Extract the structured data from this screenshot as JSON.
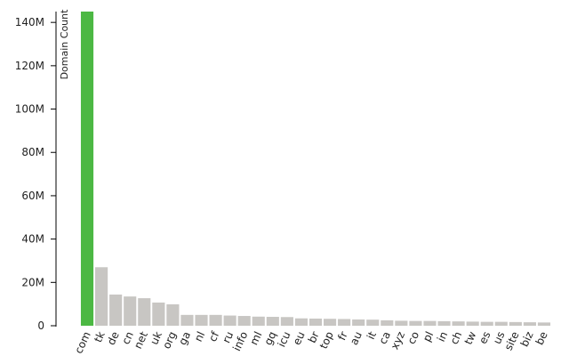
{
  "chart_data": {
    "type": "bar",
    "y_label": "Domain Count",
    "categories": [
      "com",
      "tk",
      "de",
      "cn",
      "net",
      "uk",
      "org",
      "ga",
      "nl",
      "cf",
      "ru",
      "info",
      "ml",
      "gq",
      "icu",
      "eu",
      "br",
      "top",
      "fr",
      "au",
      "it",
      "ca",
      "xyz",
      "co",
      "pl",
      "in",
      "ch",
      "tw",
      "es",
      "us",
      "site",
      "biz",
      "be"
    ],
    "values": [
      145000000,
      27000000,
      14400000,
      13500000,
      12700000,
      10700000,
      9900000,
      5000000,
      5000000,
      5000000,
      4700000,
      4500000,
      4200000,
      4100000,
      4000000,
      3400000,
      3300000,
      3200000,
      3100000,
      2900000,
      2800000,
      2500000,
      2300000,
      2200000,
      2200000,
      2100000,
      2000000,
      1900000,
      1800000,
      1800000,
      1700000,
      1600000,
      1500000
    ],
    "color": "#c8c6c3",
    "highlight_index": 0,
    "highlight_color": "#4cb843",
    "ylim": [
      0,
      145000000
    ],
    "yticks": [
      0,
      {
        "value": 20000000,
        "label": "20M"
      },
      {
        "value": 40000000,
        "label": "40M"
      },
      {
        "value": 60000000,
        "label": "60M"
      },
      {
        "value": 80000000,
        "label": "80M"
      },
      {
        "value": 100000000,
        "label": "100M"
      },
      {
        "value": 120000000,
        "label": "120M"
      },
      {
        "value": 140000000,
        "label": "140M"
      }
    ],
    "grid": false
  }
}
